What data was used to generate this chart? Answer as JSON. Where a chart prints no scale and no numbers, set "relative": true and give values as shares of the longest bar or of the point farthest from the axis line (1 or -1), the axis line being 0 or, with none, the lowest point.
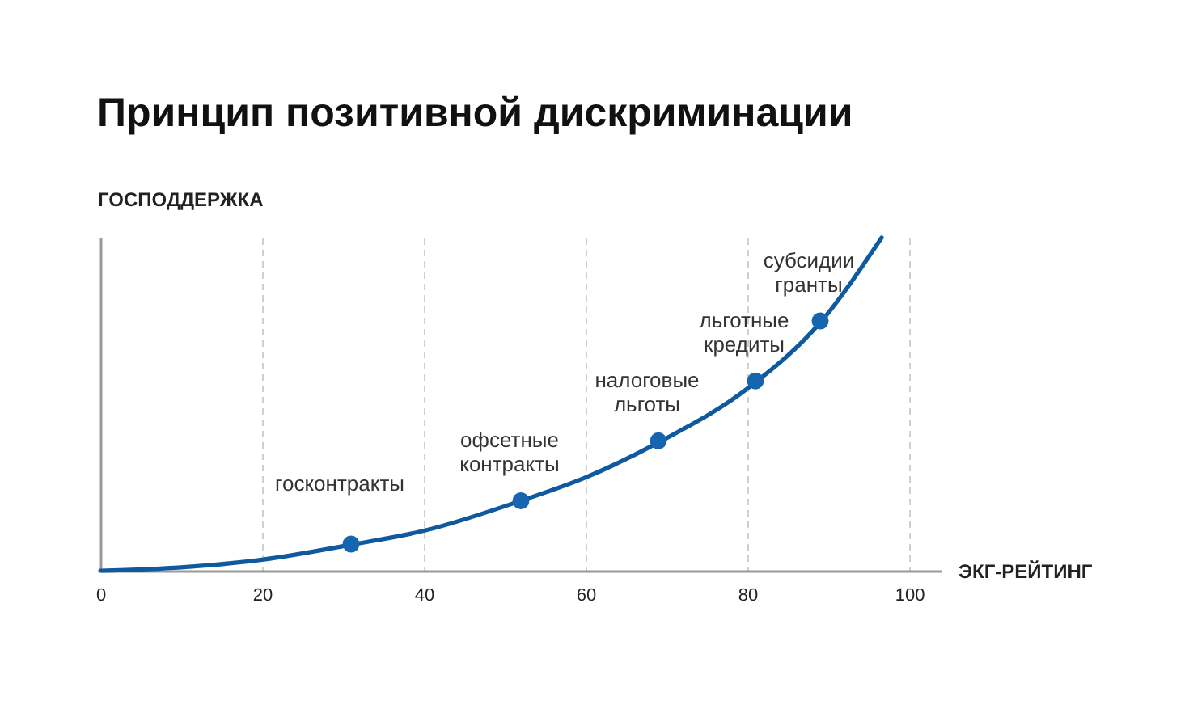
{
  "chart_data": {
    "type": "line",
    "title": "Принцип позитивной дискриминации",
    "xlabel": "ЭКГ-РЕЙТИНГ",
    "ylabel": "ГОСПОДДЕРЖКА",
    "relative": true,
    "xlim": [
      0,
      104
    ],
    "xticks": [
      0,
      20,
      40,
      60,
      80,
      100
    ],
    "grid": "x",
    "series": [
      {
        "color": "#0f5a9e",
        "line_style": "solid",
        "marker": "none",
        "x": [
          0,
          10,
          20,
          31,
          40,
          52,
          60,
          69,
          80,
          89,
          96.6
        ],
        "values": [
          0,
          0.01,
          0.033,
          0.078,
          0.12,
          0.21,
          0.28,
          0.385,
          0.547,
          0.745,
          1
        ]
      },
      {
        "type": "scatter",
        "color": "#1565b0",
        "marker": "circle",
        "x": [
          31,
          52,
          69,
          81,
          89
        ],
        "values": [
          0.08,
          0.21,
          0.39,
          0.57,
          0.75
        ]
      }
    ],
    "annotations": [
      {
        "text": "госконтракты",
        "x": 31,
        "y": 0.08
      },
      {
        "text": "офсетные\nконтракты",
        "x": 52,
        "y": 0.21
      },
      {
        "text": "налоговые\nльготы",
        "x": 69,
        "y": 0.39
      },
      {
        "text": "льготные\nкредиты",
        "x": 81,
        "y": 0.57
      },
      {
        "text": "субсидии\nгранты",
        "x": 89,
        "y": 0.75
      }
    ]
  }
}
